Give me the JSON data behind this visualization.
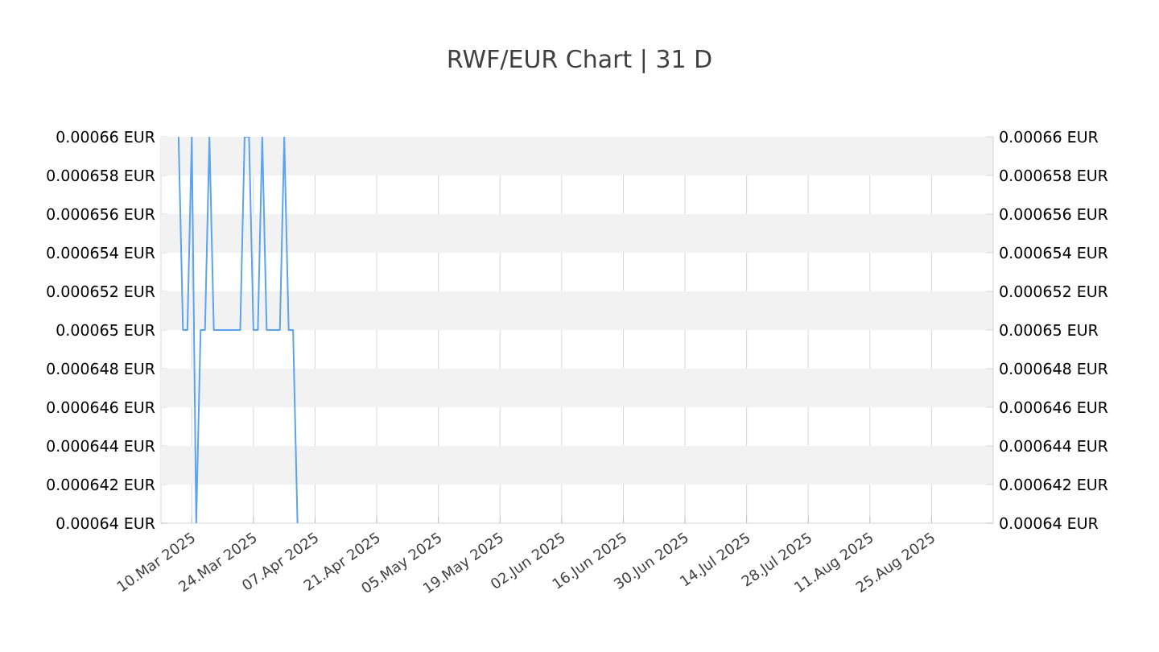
{
  "chart_data": {
    "type": "line",
    "title": "RWF/EUR Chart | 31 D",
    "x": [
      "2025-03-07",
      "2025-03-08",
      "2025-03-09",
      "2025-03-10",
      "2025-03-11",
      "2025-03-12",
      "2025-03-13",
      "2025-03-14",
      "2025-03-15",
      "2025-03-16",
      "2025-03-17",
      "2025-03-18",
      "2025-03-19",
      "2025-03-20",
      "2025-03-21",
      "2025-03-22",
      "2025-03-23",
      "2025-03-24",
      "2025-03-25",
      "2025-03-26",
      "2025-03-27",
      "2025-03-28",
      "2025-03-29",
      "2025-03-30",
      "2025-03-31",
      "2025-04-01",
      "2025-04-02",
      "2025-04-03"
    ],
    "series": [
      {
        "color": "#5ba3f0",
        "values": [
          0.00066,
          0.00065,
          0.00065,
          0.00066,
          0.00064,
          0.00065,
          0.00065,
          0.00066,
          0.00065,
          0.00065,
          0.00065,
          0.00065,
          0.00065,
          0.00065,
          0.00065,
          0.00066,
          0.00066,
          0.00065,
          0.00065,
          0.00066,
          0.00065,
          0.00065,
          0.00065,
          0.00065,
          0.00066,
          0.00065,
          0.00065,
          0.00064
        ]
      }
    ],
    "xlim": [
      "2025-03-03",
      "2025-09-08"
    ],
    "xticks": [
      {
        "value": "2025-03-10",
        "label": "10.Mar 2025"
      },
      {
        "value": "2025-03-24",
        "label": "24.Mar 2025"
      },
      {
        "value": "2025-04-07",
        "label": "07.Apr 2025"
      },
      {
        "value": "2025-04-21",
        "label": "21.Apr 2025"
      },
      {
        "value": "2025-05-05",
        "label": "05.May 2025"
      },
      {
        "value": "2025-05-19",
        "label": "19.May 2025"
      },
      {
        "value": "2025-06-02",
        "label": "02.Jun 2025"
      },
      {
        "value": "2025-06-16",
        "label": "16.Jun 2025"
      },
      {
        "value": "2025-06-30",
        "label": "30.Jun 2025"
      },
      {
        "value": "2025-07-14",
        "label": "14.Jul 2025"
      },
      {
        "value": "2025-07-28",
        "label": "28.Jul 2025"
      },
      {
        "value": "2025-08-11",
        "label": "11.Aug 2025"
      },
      {
        "value": "2025-08-25",
        "label": "25.Aug 2025"
      }
    ],
    "ylim": [
      0.00064,
      0.00066
    ],
    "yticks": [
      {
        "value": 0.00064,
        "label": "0.00064 EUR"
      },
      {
        "value": 0.000642,
        "label": "0.000642 EUR"
      },
      {
        "value": 0.000644,
        "label": "0.000644 EUR"
      },
      {
        "value": 0.000646,
        "label": "0.000646 EUR"
      },
      {
        "value": 0.000648,
        "label": "0.000648 EUR"
      },
      {
        "value": 0.00065,
        "label": "0.00065 EUR"
      },
      {
        "value": 0.000652,
        "label": "0.000652 EUR"
      },
      {
        "value": 0.000654,
        "label": "0.000654 EUR"
      },
      {
        "value": 0.000656,
        "label": "0.000656 EUR"
      },
      {
        "value": 0.000658,
        "label": "0.000658 EUR"
      },
      {
        "value": 0.00066,
        "label": "0.00066 EUR"
      }
    ],
    "y2lim": [
      0.00064,
      0.00066
    ],
    "y2ticks": [
      {
        "value": 0.00064,
        "label": "0.00064 EUR"
      },
      {
        "value": 0.000642,
        "label": "0.000642 EUR"
      },
      {
        "value": 0.000644,
        "label": "0.000644 EUR"
      },
      {
        "value": 0.000646,
        "label": "0.000646 EUR"
      },
      {
        "value": 0.000648,
        "label": "0.000648 EUR"
      },
      {
        "value": 0.00065,
        "label": "0.00065 EUR"
      },
      {
        "value": 0.000652,
        "label": "0.000652 EUR"
      },
      {
        "value": 0.000654,
        "label": "0.000654 EUR"
      },
      {
        "value": 0.000656,
        "label": "0.000656 EUR"
      },
      {
        "value": 0.000658,
        "label": "0.000658 EUR"
      },
      {
        "value": 0.00066,
        "label": "0.00066 EUR"
      }
    ],
    "bands": [
      {
        "axis": "y",
        "from": 0.000658,
        "to": 0.00066,
        "color": "#f2f2f2"
      },
      {
        "axis": "y",
        "from": 0.000654,
        "to": 0.000656,
        "color": "#f2f2f2"
      },
      {
        "axis": "y",
        "from": 0.00065,
        "to": 0.000652,
        "color": "#f2f2f2"
      },
      {
        "axis": "y",
        "from": 0.000646,
        "to": 0.000648,
        "color": "#f2f2f2"
      },
      {
        "axis": "y",
        "from": 0.000642,
        "to": 0.000644,
        "color": "#f2f2f2"
      }
    ],
    "grid": "x",
    "marker": "none",
    "line_style": "solid"
  }
}
